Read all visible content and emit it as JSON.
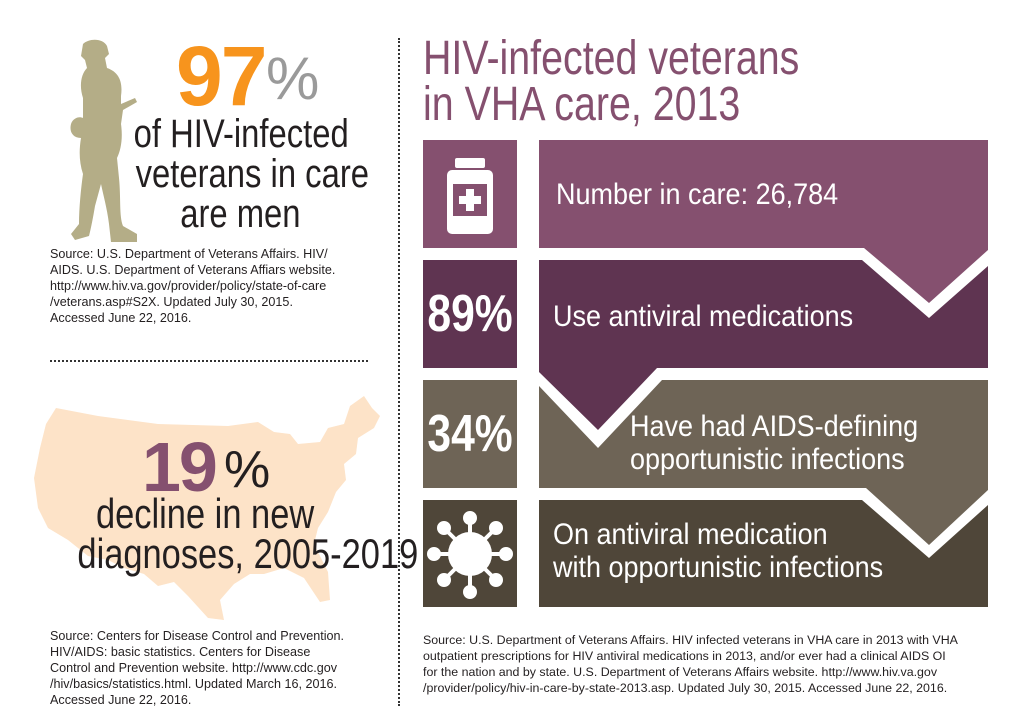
{
  "left_top": {
    "stat_number": "97",
    "stat_unit": "%",
    "lines": [
      "of HIV-infected",
      "veterans in care",
      "are men"
    ],
    "source": [
      "Source: U.S. Department of Veterans Affairs. HIV/",
      "AIDS. U.S. Department of Veterans Affiars website.",
      "http://www.hiv.va.gov/provider/policy/state-of-care",
      "/veterans.asp#S2X. Updated July 30, 2015.",
      "Accessed June 22, 2016."
    ],
    "icon": "soldier-silhouette-icon"
  },
  "left_bottom": {
    "stat_number": "19",
    "stat_unit": "%",
    "lines": [
      "decline in new",
      "diagnoses, 2005-2019"
    ],
    "source": [
      "Source: Centers for Disease Control and Prevention.",
      "HIV/AIDS: basic statistics. Centers for Disease",
      "Control and Prevention website. http://www.cdc.gov",
      "/hiv/basics/statistics.html. Updated March 16, 2016.",
      "Accessed June 22, 2016."
    ],
    "icon": "us-map-icon"
  },
  "right": {
    "title": [
      "HIV-infected veterans",
      "in VHA care, 2013"
    ],
    "rows": [
      {
        "badge_icon": "medicine-bottle-icon",
        "text": [
          "Number in care: 26,784"
        ],
        "color": "#85506f"
      },
      {
        "badge": "89%",
        "text": [
          "Use antiviral medications"
        ],
        "color": "#5f3451"
      },
      {
        "badge": "34%",
        "text": [
          "Have had AIDS-defining",
          "opportunistic infections"
        ],
        "color": "#6e6456"
      },
      {
        "badge_icon": "virus-icon",
        "text": [
          "On antiviral medication",
          "with opportunistic infections"
        ],
        "color": "#4f4639"
      }
    ],
    "source": [
      "Source: U.S. Department of Veterans Affairs. HIV infected veterans in VHA care in 2013 with VHA",
      "outpatient prescriptions for HIV antiviral medications in 2013, and/or ever had a clinical AIDS OI",
      "for the nation and by state. U.S. Department of Veterans Affairs website. http://www.hiv.va.gov",
      "/provider/policy/hiv-in-care-by-state-2013.asp. Updated July 30, 2015. Accessed June 22, 2016."
    ]
  },
  "colors": {
    "orange": "#f7941d",
    "purple": "#85506f",
    "dark_purple": "#5f3451",
    "taupe": "#6e6456",
    "dark_brown": "#4f4639",
    "khaki": "#b4ad87",
    "peach": "#fde3c8",
    "gray": "#9a9a9a"
  }
}
